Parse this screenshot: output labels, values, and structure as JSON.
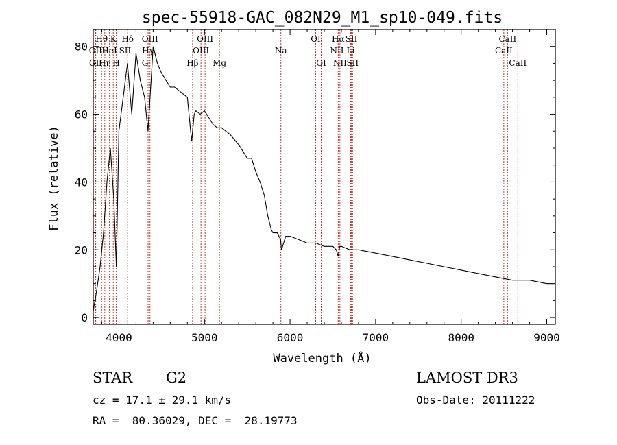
{
  "header": {
    "title": "spec-55918-GAC_082N29_M1_sp10-049.fits"
  },
  "info": {
    "object_class": "STAR",
    "subclass": "G2",
    "survey": "LAMOST DR3",
    "redshift": "cz = 17.1 ± 29.1 km/s",
    "obs_date": "Obs-Date: 20111222",
    "coords": "RA =  80.36029, DEC =  28.19773"
  },
  "chart_data": {
    "type": "line",
    "title": "spec-55918-GAC_082N29_M1_sp10-049.fits",
    "xlabel": "Wavelength (Å)",
    "ylabel": "Flux (relative)",
    "xlim": [
      3700,
      9100
    ],
    "ylim": [
      -2,
      85
    ],
    "xticks": [
      4000,
      5000,
      6000,
      7000,
      8000,
      9000
    ],
    "yticks": [
      0,
      20,
      40,
      60,
      80
    ],
    "series": [
      {
        "name": "spectrum",
        "x": [
          3700,
          3740,
          3780,
          3820,
          3860,
          3900,
          3940,
          3970,
          4000,
          4050,
          4100,
          4150,
          4200,
          4250,
          4300,
          4340,
          4400,
          4450,
          4500,
          4550,
          4600,
          4650,
          4700,
          4750,
          4800,
          4850,
          4861,
          4880,
          4900,
          4950,
          5000,
          5050,
          5100,
          5150,
          5200,
          5250,
          5300,
          5400,
          5500,
          5550,
          5600,
          5650,
          5700,
          5740,
          5780,
          5800,
          5850,
          5890,
          5900,
          5950,
          6000,
          6100,
          6200,
          6300,
          6400,
          6500,
          6540,
          6563,
          6580,
          6600,
          6700,
          6800,
          7000,
          7200,
          7400,
          7600,
          7800,
          8000,
          8200,
          8400,
          8600,
          8800,
          9000,
          9050,
          9080
        ],
        "y": [
          2,
          8,
          15,
          25,
          40,
          50,
          35,
          15,
          55,
          65,
          75,
          60,
          78,
          70,
          65,
          55,
          80,
          75,
          72,
          70,
          68,
          68,
          67,
          66,
          65,
          52,
          55,
          60,
          61,
          60,
          61,
          59,
          57,
          56,
          56,
          55,
          54,
          51,
          47,
          47,
          43,
          40,
          36,
          30,
          26,
          25,
          25,
          23,
          20,
          24,
          24,
          23,
          22,
          22,
          21,
          21,
          20,
          18,
          21,
          21,
          20,
          20,
          19,
          18,
          17,
          16,
          15,
          14,
          13,
          12,
          11,
          11,
          10,
          10,
          10
        ]
      }
    ],
    "annotations": [
      {
        "label": "Hθ",
        "wavelength": 3798,
        "row": 0
      },
      {
        "label": "OII",
        "wavelength": 3727,
        "row": 1
      },
      {
        "label": "OII",
        "wavelength": 3729,
        "row": 2
      },
      {
        "label": "K",
        "wavelength": 3934,
        "row": 0
      },
      {
        "label": "HeI",
        "wavelength": 3889,
        "row": 1
      },
      {
        "label": "Hη",
        "wavelength": 3835,
        "row": 2
      },
      {
        "label": "Hδ",
        "wavelength": 4102,
        "row": 0
      },
      {
        "label": "SII",
        "wavelength": 4072,
        "row": 1
      },
      {
        "label": "H",
        "wavelength": 3969,
        "row": 2
      },
      {
        "label": "OIII",
        "wavelength": 4363,
        "row": 0
      },
      {
        "label": "Hγ",
        "wavelength": 4341,
        "row": 1
      },
      {
        "label": "G",
        "wavelength": 4305,
        "row": 2
      },
      {
        "label": "OIII",
        "wavelength": 5007,
        "row": 0
      },
      {
        "label": "OIII",
        "wavelength": 4959,
        "row": 1
      },
      {
        "label": "Hβ",
        "wavelength": 4861,
        "row": 2
      },
      {
        "label": "Mg",
        "wavelength": 5175,
        "row": 2
      },
      {
        "label": "Na",
        "wavelength": 5893,
        "row": 1
      },
      {
        "label": "OI",
        "wavelength": 6300,
        "row": 0
      },
      {
        "label": "OI",
        "wavelength": 6364,
        "row": 2
      },
      {
        "label": "Hα",
        "wavelength": 6563,
        "row": 0
      },
      {
        "label": "NII",
        "wavelength": 6548,
        "row": 1
      },
      {
        "label": "NII",
        "wavelength": 6583,
        "row": 2
      },
      {
        "label": "SII",
        "wavelength": 6717,
        "row": 0
      },
      {
        "label": "Li",
        "wavelength": 6708,
        "row": 1
      },
      {
        "label": "SII",
        "wavelength": 6731,
        "row": 2
      },
      {
        "label": "CaII",
        "wavelength": 8542,
        "row": 0
      },
      {
        "label": "CaII",
        "wavelength": 8498,
        "row": 1
      },
      {
        "label": "CaII",
        "wavelength": 8662,
        "row": 2
      }
    ]
  }
}
